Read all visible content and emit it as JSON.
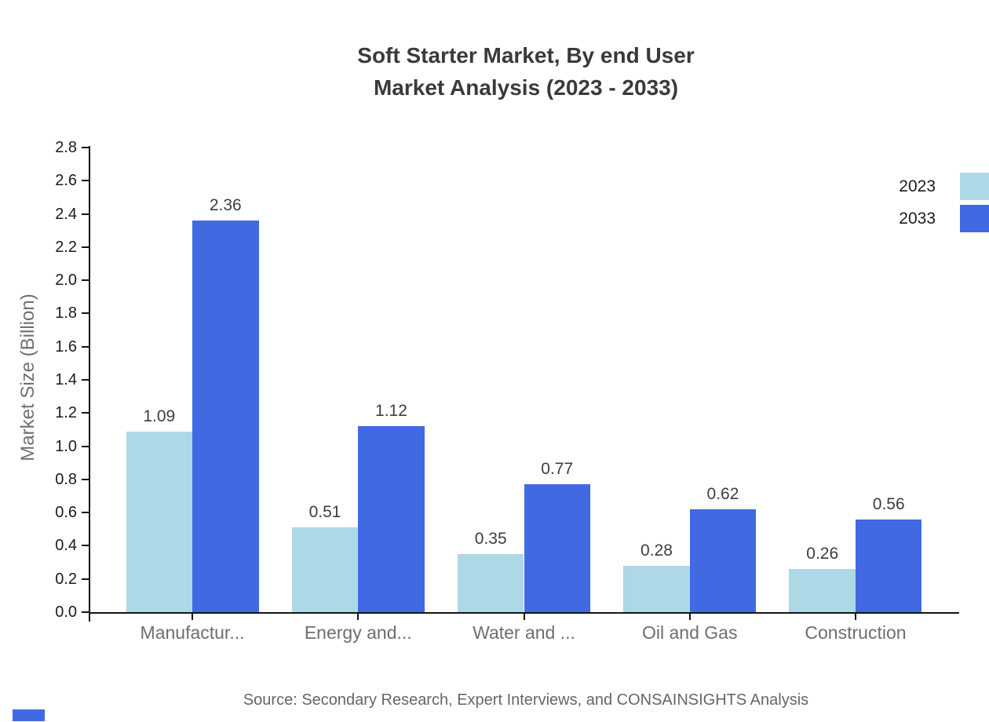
{
  "title": {
    "line1": "Soft Starter Market, By end User",
    "line2": "Market Analysis (2023 - 2033)"
  },
  "y_axis_title": "Market Size (Billion)",
  "source_note": "Source: Secondary Research, Expert Interviews, and CONSAINSIGHTS Analysis",
  "legend": {
    "items": [
      {
        "label": "2023",
        "color": "#ADD8E6"
      },
      {
        "label": "2033",
        "color": "#4169E1"
      }
    ]
  },
  "chart_data": {
    "type": "bar",
    "title": "Soft Starter Market, By end User Market Analysis (2023 - 2033)",
    "categories": [
      "Manufactur...",
      "Energy and...",
      "Water and ...",
      "Oil and Gas",
      "Construction"
    ],
    "series": [
      {
        "name": "2023",
        "color": "#ADD8E6",
        "values": [
          1.09,
          0.51,
          0.35,
          0.28,
          0.26
        ]
      },
      {
        "name": "2033",
        "color": "#4169E1",
        "values": [
          2.36,
          1.12,
          0.77,
          0.62,
          0.56
        ]
      }
    ],
    "value_labels": {
      "2023": [
        "1.09",
        "0.51",
        "0.35",
        "0.28",
        "0.26"
      ],
      "2033": [
        "2.36",
        "1.12",
        "0.77",
        "0.62",
        "0.56"
      ]
    },
    "xlabel": "",
    "ylabel": "Market Size (Billion)",
    "ylim": [
      0.0,
      2.8
    ],
    "ytick_step": 0.2,
    "yticks": [
      "0.0",
      "0.2",
      "0.4",
      "0.6",
      "0.8",
      "1.0",
      "1.2",
      "1.4",
      "1.6",
      "1.8",
      "2.0",
      "2.2",
      "2.4",
      "2.6",
      "2.8"
    ],
    "grid": false,
    "legend_position": "upper right outside"
  },
  "brand_mark_color": "#4169E1"
}
